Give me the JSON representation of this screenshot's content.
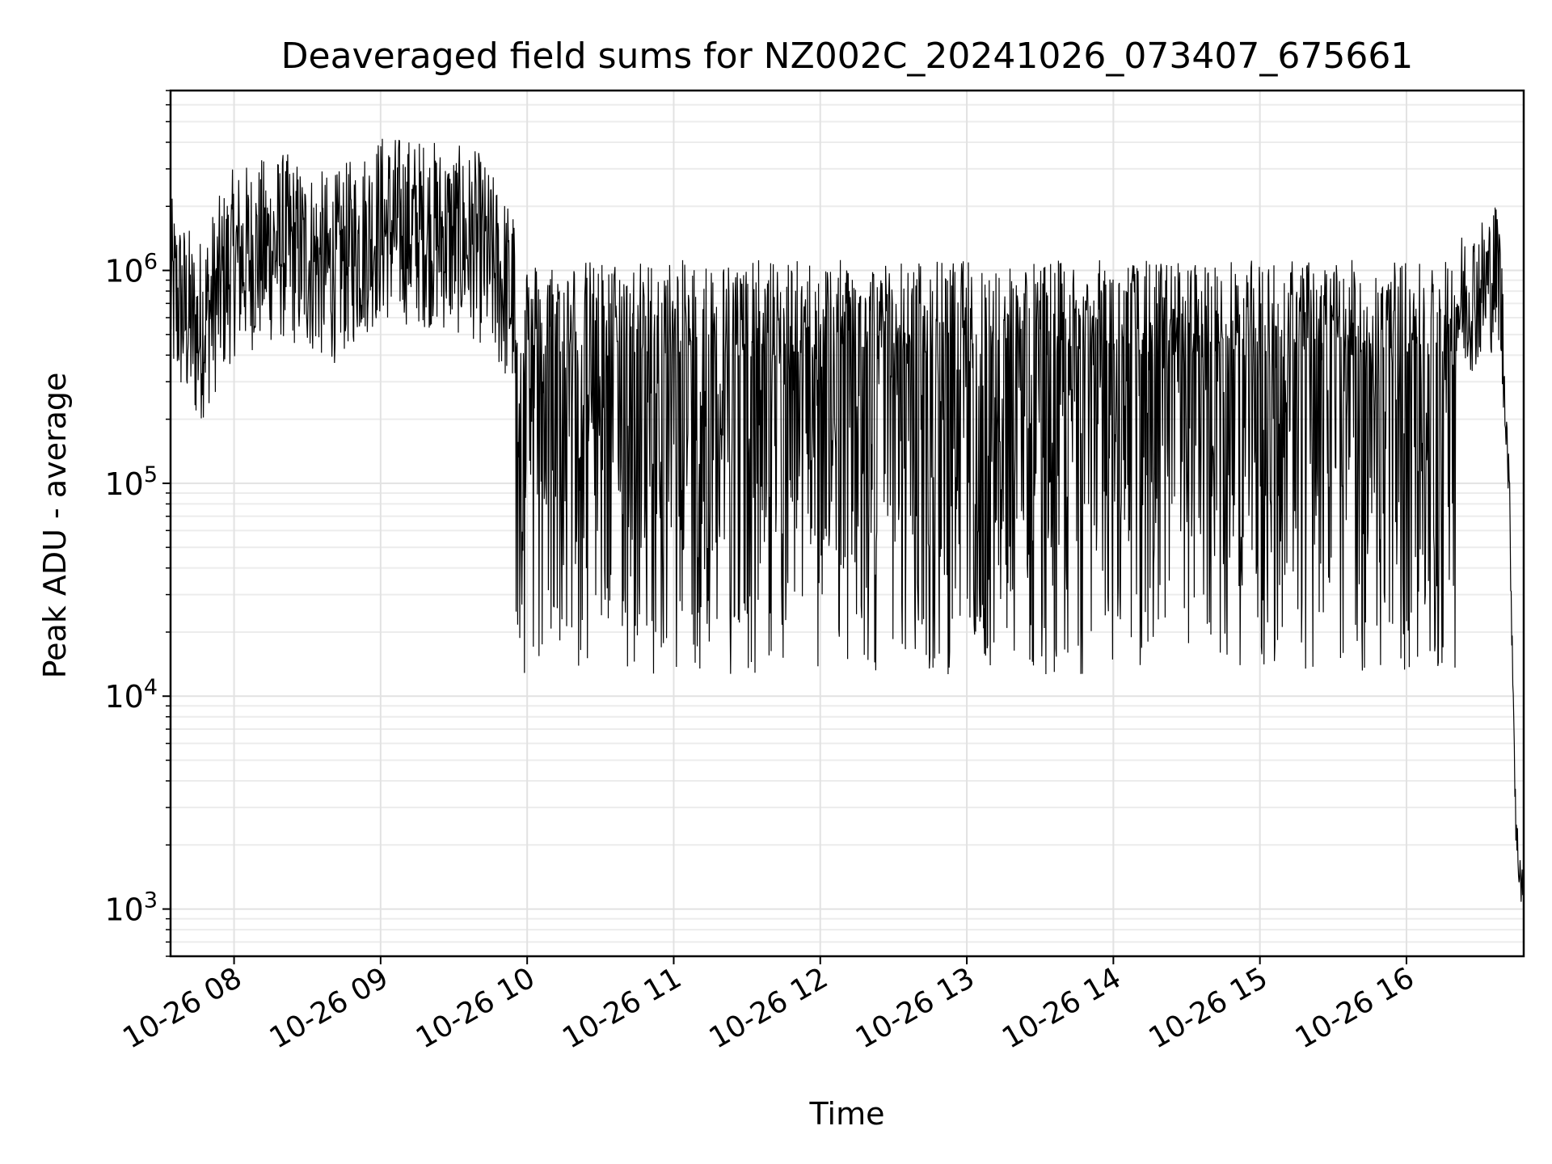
{
  "chart_data": {
    "type": "line",
    "title": "Deaveraged field sums for NZ002C_20241026_073407_675661",
    "xlabel": "Time",
    "ylabel": "Peak ADU - average",
    "yscale": "log",
    "ylim": [
      600,
      7000000
    ],
    "xlim": [
      "2024-10-26 07:34",
      "2024-10-26 16:48"
    ],
    "grid": true,
    "line_color": "#000000",
    "x_ticks": [
      {
        "label": "10-26 08",
        "value": "2024-10-26 08:00"
      },
      {
        "label": "10-26 09",
        "value": "2024-10-26 09:00"
      },
      {
        "label": "10-26 10",
        "value": "2024-10-26 10:00"
      },
      {
        "label": "10-26 11",
        "value": "2024-10-26 11:00"
      },
      {
        "label": "10-26 12",
        "value": "2024-10-26 12:00"
      },
      {
        "label": "10-26 13",
        "value": "2024-10-26 13:00"
      },
      {
        "label": "10-26 14",
        "value": "2024-10-26 14:00"
      },
      {
        "label": "10-26 15",
        "value": "2024-10-26 15:00"
      },
      {
        "label": "10-26 16",
        "value": "2024-10-26 16:00"
      }
    ],
    "y_ticks": [
      {
        "base": "10",
        "exp": "3",
        "value": 1000
      },
      {
        "base": "10",
        "exp": "4",
        "value": 10000
      },
      {
        "base": "10",
        "exp": "5",
        "value": 100000
      },
      {
        "base": "10",
        "exp": "6",
        "value": 1000000
      }
    ],
    "series": [
      {
        "x": [
          "2024-10-26 07:34",
          "2024-10-26 07:45",
          "2024-10-26 08:00",
          "2024-10-26 08:20",
          "2024-10-26 08:40",
          "2024-10-26 09:00",
          "2024-10-26 09:20",
          "2024-10-26 09:40",
          "2024-10-26 09:55",
          "2024-10-26 10:10",
          "2024-10-26 10:30",
          "2024-10-26 10:50",
          "2024-10-26 11:10",
          "2024-10-26 11:30",
          "2024-10-26 11:50",
          "2024-10-26 12:10",
          "2024-10-26 12:30",
          "2024-10-26 12:50",
          "2024-10-26 13:10",
          "2024-10-26 13:30",
          "2024-10-26 13:50",
          "2024-10-26 14:10",
          "2024-10-26 14:30",
          "2024-10-26 14:50",
          "2024-10-26 15:10",
          "2024-10-26 15:30",
          "2024-10-26 15:50",
          "2024-10-26 16:00",
          "2024-10-26 16:15",
          "2024-10-26 16:30",
          "2024-10-26 16:38",
          "2024-10-26 16:42",
          "2024-10-26 16:45",
          "2024-10-26 16:48"
        ],
        "y": [
          800000,
          500000,
          1100000,
          1300000,
          1000000,
          1600000,
          1500000,
          1300000,
          700000,
          300000,
          250000,
          200000,
          250000,
          300000,
          350000,
          350000,
          300000,
          250000,
          250000,
          250000,
          250000,
          300000,
          300000,
          300000,
          350000,
          350000,
          400000,
          500000,
          600000,
          800000,
          1000000,
          100000,
          2000,
          1200
        ]
      }
    ]
  }
}
